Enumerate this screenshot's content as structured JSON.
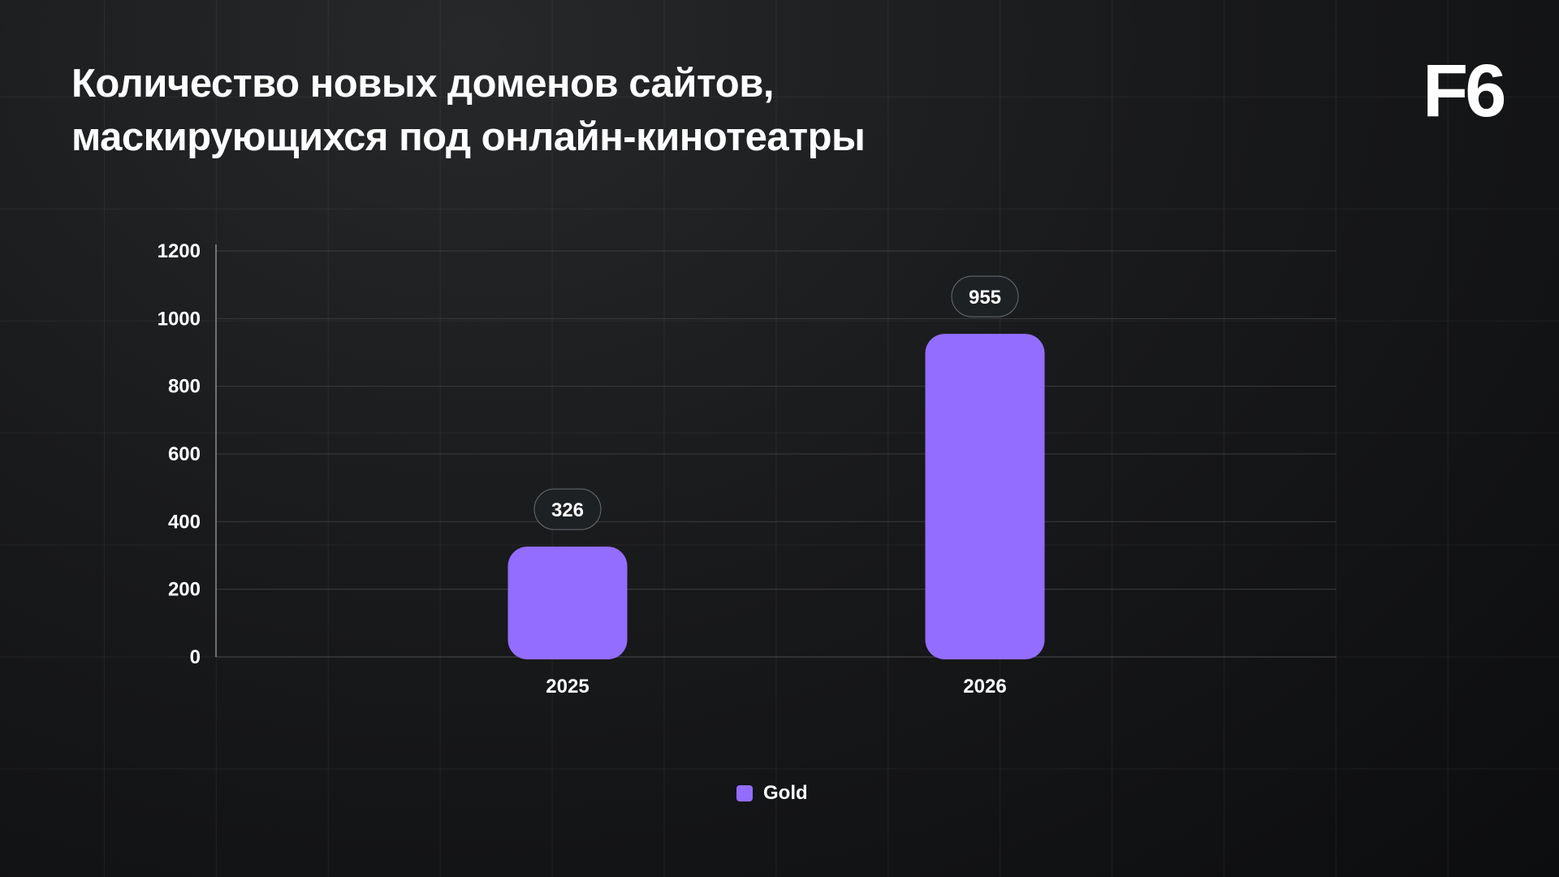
{
  "title_lines": [
    "Количество новых доменов сайтов,",
    "маскирующихся под онлайн-кинотеатры"
  ],
  "logo": "F6",
  "colors": {
    "bar": "#936dff",
    "pill_bg": "#1e2124",
    "pill_border": "#6b6e72",
    "grid": "#3a3c3f",
    "axis": "#8a8c8f"
  },
  "chart_data": {
    "type": "bar",
    "title": "Количество новых доменов сайтов, маскирующихся под онлайн-кинотеатры",
    "categories": [
      "2025",
      "2026"
    ],
    "series": [
      {
        "name": "Gold",
        "values": [
          326,
          955
        ]
      }
    ],
    "data_labels": [
      "326",
      "955"
    ],
    "xlabel": "",
    "ylabel": "",
    "ylim": [
      0,
      1200
    ],
    "yticks": [
      "0",
      "200",
      "400",
      "600",
      "800",
      "1000",
      "1200"
    ],
    "grid": true,
    "legend": "bottom-center"
  }
}
